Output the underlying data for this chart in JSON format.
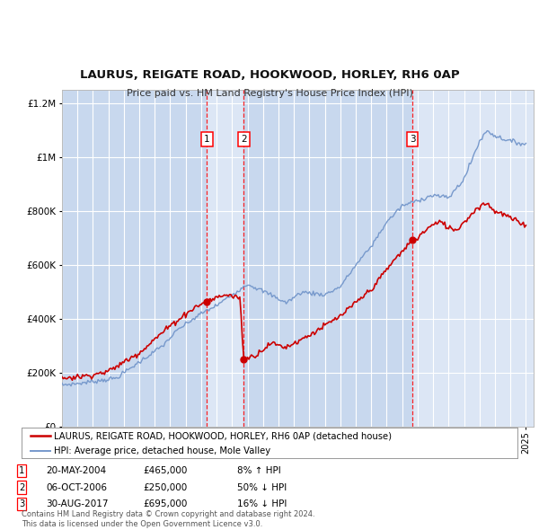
{
  "title": "LAURUS, REIGATE ROAD, HOOKWOOD, HORLEY, RH6 0AP",
  "subtitle": "Price paid vs. HM Land Registry's House Price Index (HPI)",
  "legend_label_red": "LAURUS, REIGATE ROAD, HOOKWOOD, HORLEY, RH6 0AP (detached house)",
  "legend_label_blue": "HPI: Average price, detached house, Mole Valley",
  "transactions": [
    {
      "num": 1,
      "date": "20-MAY-2004",
      "date_val": 2004.38,
      "price": 465000,
      "pct": "8% ↑ HPI"
    },
    {
      "num": 2,
      "date": "06-OCT-2006",
      "date_val": 2006.76,
      "price": 250000,
      "pct": "50% ↓ HPI"
    },
    {
      "num": 3,
      "date": "30-AUG-2017",
      "date_val": 2017.66,
      "price": 695000,
      "pct": "16% ↓ HPI"
    }
  ],
  "ylim": [
    0,
    1250000
  ],
  "xlim_start": 1995.0,
  "xlim_end": 2025.5,
  "background_color": "#ffffff",
  "plot_bg_color": "#eef2fa",
  "grid_color": "#ffffff",
  "red_color": "#cc0000",
  "blue_color": "#7799cc",
  "shade_light": "#dce6f5",
  "shade_dark": "#c8d8ee",
  "footnote": "Contains HM Land Registry data © Crown copyright and database right 2024.\nThis data is licensed under the Open Government Licence v3.0.",
  "hpi_anchors": {
    "1995.0": 155000,
    "1996.0": 160000,
    "1997.0": 168000,
    "1998.5": 180000,
    "2000.0": 240000,
    "2001.5": 300000,
    "2002.5": 360000,
    "2004.0": 420000,
    "2005.0": 450000,
    "2006.0": 490000,
    "2007.0": 530000,
    "2008.5": 490000,
    "2009.5": 460000,
    "2010.5": 500000,
    "2012.0": 490000,
    "2013.0": 520000,
    "2014.0": 600000,
    "2015.0": 670000,
    "2016.0": 760000,
    "2017.0": 820000,
    "2017.5": 830000,
    "2018.0": 840000,
    "2019.0": 860000,
    "2020.0": 850000,
    "2021.0": 920000,
    "2022.0": 1060000,
    "2022.5": 1100000,
    "2023.0": 1080000,
    "2024.0": 1060000,
    "2024.9": 1050000
  },
  "prop_anchors": {
    "1995.0": 180000,
    "1996.5": 188000,
    "1998.0": 205000,
    "2000.0": 275000,
    "2002.0": 375000,
    "2003.5": 440000,
    "2004.38": 465000,
    "2005.5": 490000,
    "2006.5": 480000,
    "2006.76": 250000,
    "2007.0": 255000,
    "2007.5": 265000,
    "2008.5": 310000,
    "2009.5": 295000,
    "2011.0": 340000,
    "2013.0": 410000,
    "2015.0": 510000,
    "2016.5": 620000,
    "2017.0": 650000,
    "2017.66": 695000,
    "2018.0": 700000,
    "2018.5": 730000,
    "2019.0": 750000,
    "2019.5": 760000,
    "2020.0": 740000,
    "2020.5": 730000,
    "2021.0": 760000,
    "2021.5": 790000,
    "2022.0": 820000,
    "2022.5": 830000,
    "2023.0": 800000,
    "2023.5": 790000,
    "2024.0": 775000,
    "2024.5": 760000,
    "2024.9": 750000
  }
}
